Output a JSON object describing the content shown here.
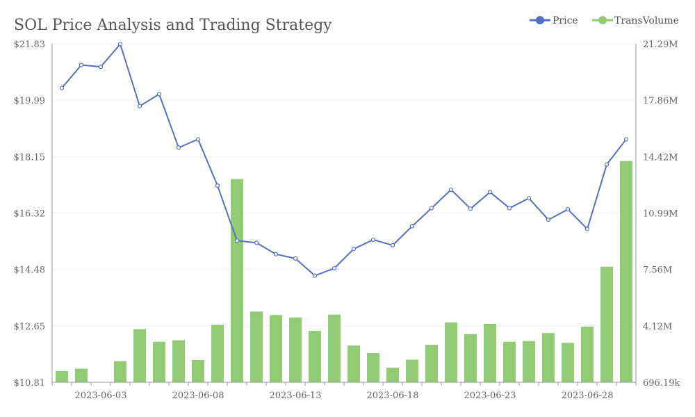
{
  "chart_data": {
    "type": "bar+line",
    "title": "SOL Price Analysis and Trading Strategy",
    "colors": {
      "price": "#5470c6",
      "volume": "#91cc75"
    },
    "legend": {
      "placement": "top-right",
      "entries": [
        "Price",
        "TransVolume"
      ]
    },
    "x": [
      "2023-06-01",
      "2023-06-02",
      "2023-06-03",
      "2023-06-04",
      "2023-06-05",
      "2023-06-06",
      "2023-06-07",
      "2023-06-08",
      "2023-06-09",
      "2023-06-10",
      "2023-06-11",
      "2023-06-12",
      "2023-06-13",
      "2023-06-14",
      "2023-06-15",
      "2023-06-16",
      "2023-06-17",
      "2023-06-18",
      "2023-06-19",
      "2023-06-20",
      "2023-06-21",
      "2023-06-22",
      "2023-06-23",
      "2023-06-24",
      "2023-06-25",
      "2023-06-26",
      "2023-06-27",
      "2023-06-28",
      "2023-06-29",
      "2023-06-30"
    ],
    "x_tick_labels": [
      "2023-06-03",
      "2023-06-08",
      "2023-06-13",
      "2023-06-18",
      "2023-06-23",
      "2023-06-28"
    ],
    "y_left": {
      "min": 10.81,
      "max": 21.83,
      "tick_labels": [
        "$10.81",
        "$12.65",
        "$14.48",
        "$16.32",
        "$18.15",
        "$19.99",
        "$21.83"
      ]
    },
    "y_right": {
      "min": 696190,
      "max": 21290000,
      "tick_labels": [
        "696.19k",
        "4.12M",
        "7.56M",
        "10.99M",
        "14.42M",
        "17.86M",
        "21.29M"
      ]
    },
    "series": [
      {
        "name": "Price",
        "kind": "line",
        "values": [
          20.39,
          21.14,
          21.08,
          21.82,
          19.8,
          20.19,
          18.45,
          18.72,
          17.21,
          15.42,
          15.35,
          14.98,
          14.84,
          14.28,
          14.52,
          15.15,
          15.45,
          15.27,
          15.89,
          16.48,
          17.08,
          16.46,
          17.0,
          16.48,
          16.8,
          16.1,
          16.44,
          15.8,
          17.9,
          18.72
        ]
      },
      {
        "name": "TransVolume",
        "kind": "bar",
        "values": [
          1380000,
          1520000,
          700000,
          1980000,
          3930000,
          3160000,
          3250000,
          2050000,
          4190000,
          13060000,
          5000000,
          4790000,
          4640000,
          3820000,
          4810000,
          2930000,
          2470000,
          1580000,
          2070000,
          2980000,
          4340000,
          3630000,
          4250000,
          3160000,
          3200000,
          3690000,
          3090000,
          4080000,
          7730000,
          14160000
        ]
      }
    ]
  }
}
